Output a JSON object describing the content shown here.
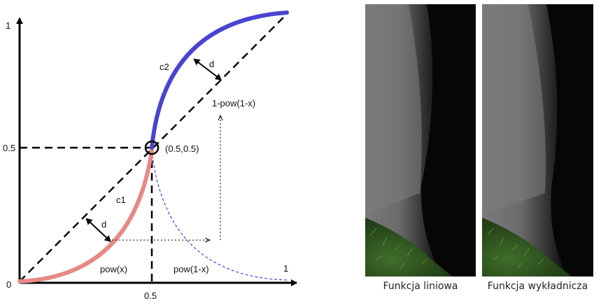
{
  "diagram": {
    "axis_labels": {
      "y_top": "1",
      "y_mid": "0.5",
      "origin": "0",
      "x_mid": "0.5",
      "x_end": "1"
    },
    "curve_labels": {
      "c1": "c1",
      "c2": "c2",
      "d_upper": "d",
      "d_lower": "d"
    },
    "formulas": {
      "upper_inverse": "1-pow(1-x)",
      "pow_x": "pow(x)",
      "pow_1_minus_x": "pow(1-x)"
    },
    "midpoint_label": "(0.5,0.5)",
    "colors": {
      "c1": "#e58a86",
      "c2": "#4a44d0",
      "dashed_reflection": "#4a44d0"
    }
  },
  "photos": [
    {
      "caption": "Funkcja liniowa"
    },
    {
      "caption": "Funkcja wykładnicza"
    }
  ]
}
